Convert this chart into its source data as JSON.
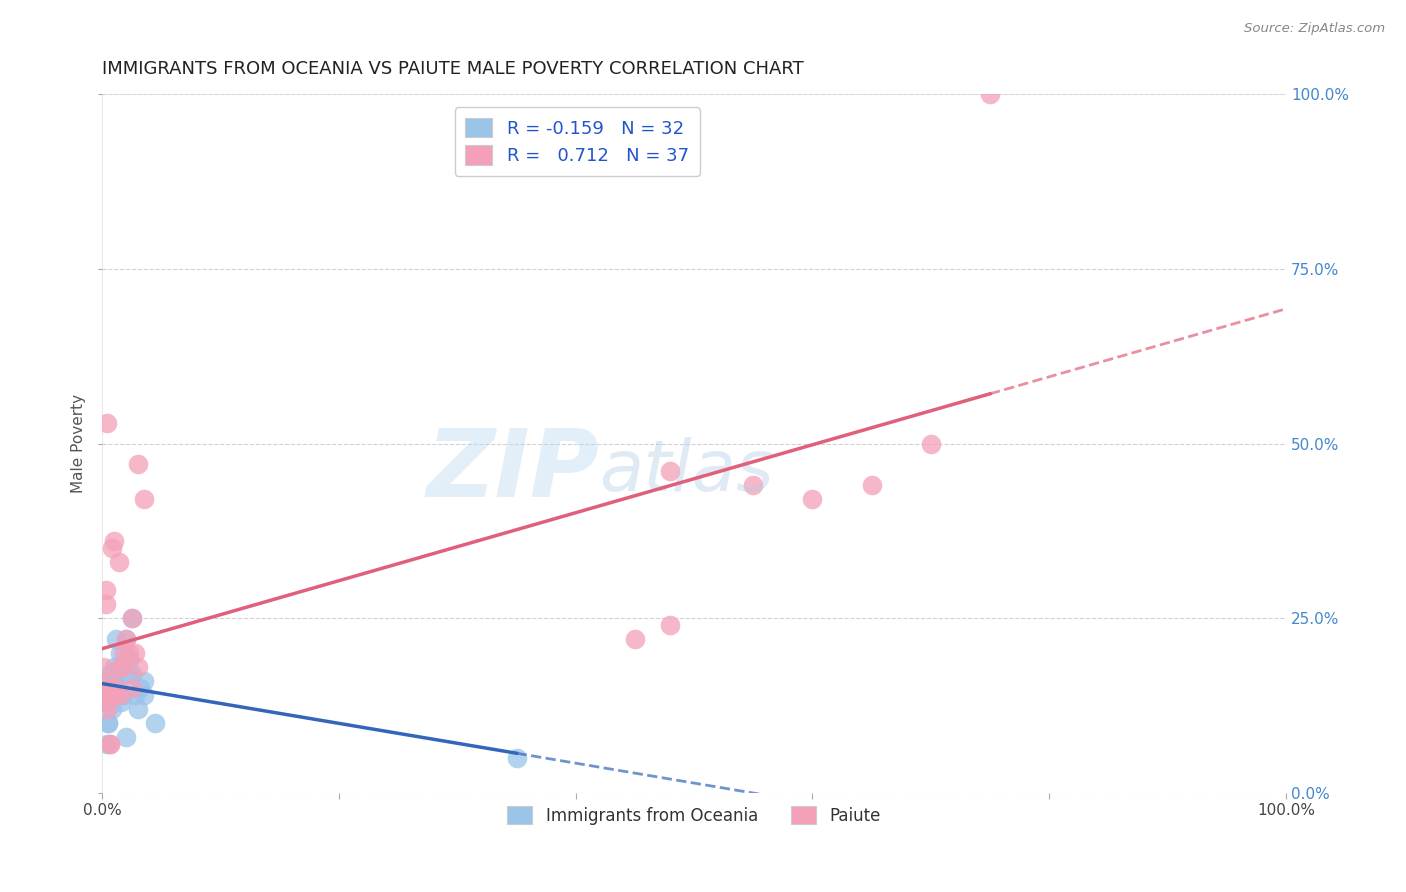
{
  "title": "IMMIGRANTS FROM OCEANIA VS PAIUTE MALE POVERTY CORRELATION CHART",
  "source": "Source: ZipAtlas.com",
  "ylabel": "Male Poverty",
  "legend_labels": [
    "Immigrants from Oceania",
    "Paiute"
  ],
  "blue_R": -0.159,
  "blue_N": 32,
  "pink_R": 0.712,
  "pink_N": 37,
  "blue_color": "#9ac4e8",
  "pink_color": "#f4a0b8",
  "blue_line_color": "#3366bb",
  "pink_line_color": "#e0607a",
  "background_color": "#ffffff",
  "grid_color": "#cccccc",
  "title_fontsize": 13,
  "axis_label_fontsize": 11,
  "tick_fontsize": 11,
  "watermark": "ZIPatlas",
  "blue_x": [
    0.2,
    0.4,
    0.5,
    0.7,
    0.8,
    1.0,
    1.0,
    1.2,
    1.3,
    1.5,
    1.5,
    1.7,
    1.8,
    2.0,
    2.0,
    2.2,
    2.3,
    2.5,
    2.5,
    2.8,
    3.0,
    3.2,
    3.5,
    3.5,
    0.3,
    0.6,
    0.9,
    0.5,
    1.1,
    1.6,
    4.5,
    35.0
  ],
  "blue_y": [
    14,
    7,
    10,
    17,
    12,
    16,
    18,
    22,
    15,
    20,
    18,
    14,
    14,
    22,
    8,
    17,
    19,
    17,
    25,
    14,
    12,
    15,
    14,
    16,
    13,
    16,
    15,
    10,
    17,
    13,
    10,
    5
  ],
  "pink_x": [
    0.1,
    0.2,
    0.3,
    0.4,
    0.5,
    0.5,
    0.6,
    0.7,
    0.8,
    0.9,
    1.0,
    1.1,
    1.2,
    1.4,
    1.5,
    1.5,
    1.7,
    1.8,
    2.0,
    2.3,
    2.5,
    2.5,
    2.8,
    3.0,
    3.5,
    0.3,
    0.7,
    3.0,
    45.0,
    48.0,
    55.0,
    60.0,
    65.0,
    70.0,
    75.0,
    48.0,
    0.4
  ],
  "pink_y": [
    18,
    13,
    27,
    12,
    15,
    14,
    16,
    7,
    35,
    14,
    36,
    14,
    15,
    33,
    14,
    18,
    18,
    20,
    22,
    20,
    15,
    25,
    20,
    47,
    42,
    29,
    7,
    18,
    22,
    24,
    44,
    42,
    44,
    50,
    100,
    46,
    53
  ],
  "xlim": [
    0,
    100
  ],
  "ylim": [
    0,
    100
  ],
  "y_right_ticks": [
    0,
    25,
    50,
    75,
    100
  ],
  "x_ticks_show": [
    0,
    100
  ],
  "blue_solid_end": 35,
  "pink_solid_end": 75
}
